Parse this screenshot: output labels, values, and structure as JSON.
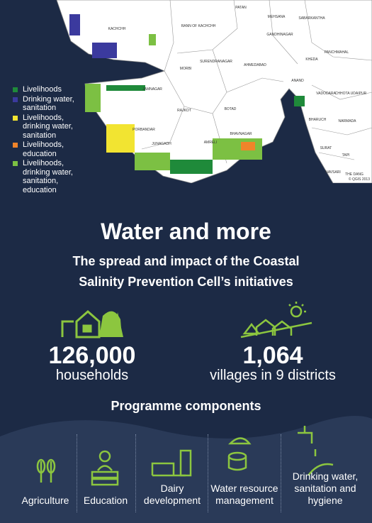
{
  "map": {
    "labels": [
      "RANN OF KACHCHH",
      "PATAN",
      "MEHSANA",
      "SABARKANTHA",
      "KACHCHH",
      "GANDHINAGAR",
      "PANCHMAHAL",
      "MORBI",
      "SURENDRANAGAR",
      "AHMEDABAD",
      "KHEDA",
      "JAMNAGAR",
      "ANAND",
      "VADODARA",
      "CHHOTA UDAIPUR",
      "RAJKOT",
      "BOTAD",
      "BHARUCH",
      "NARMADA",
      "PORBANDAR",
      "JUNAGADH",
      "AMRELI",
      "BHAVNAGAR",
      "SURAT",
      "TAPI",
      "NAVSARI",
      "THE DANG"
    ],
    "copyright": "© QGIS 2013"
  },
  "legend": [
    {
      "label": "Livelihoods",
      "color": "#1f8a3a"
    },
    {
      "label": "Drinking water, sanitation",
      "color": "#3b3a9e"
    },
    {
      "label": "Livelihoods, drinking water, sanitation",
      "color": "#f2e431"
    },
    {
      "label": "Livelihoods, education",
      "color": "#f0842a"
    },
    {
      "label": "Livelihoods, drinking water, sanitation, education",
      "color": "#7cc043"
    }
  ],
  "title": "Water and more",
  "subtitle": [
    "The spread and impact of the Coastal",
    "Salinity Prevention Cell’s initiatives"
  ],
  "stats": [
    {
      "value": "126,000",
      "label": "households"
    },
    {
      "value": "1,064",
      "label": "villages in 9 districts"
    }
  ],
  "components": {
    "heading": "Programme components",
    "items": [
      "Agriculture",
      "Education",
      "Dairy development",
      "Water resource management",
      "Drinking water, sanitation and hygiene"
    ]
  }
}
